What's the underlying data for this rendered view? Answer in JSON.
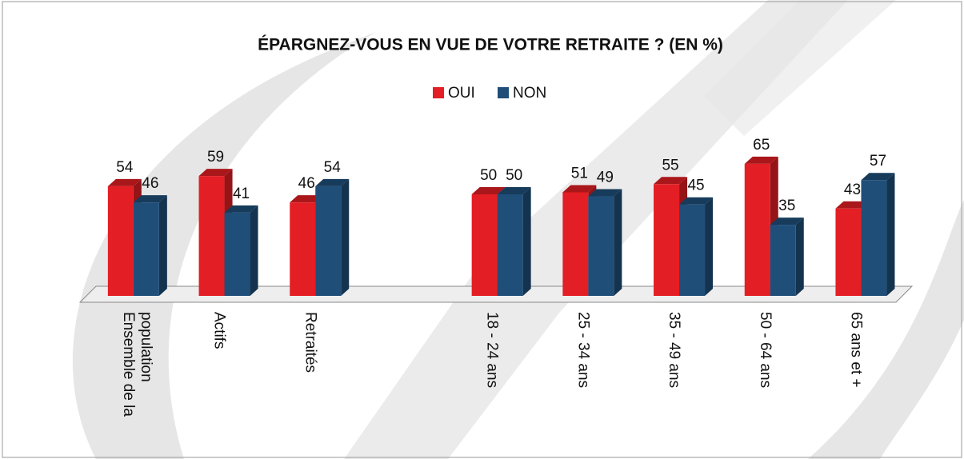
{
  "chart_data": {
    "type": "bar3d",
    "title": "ÉPARGNEZ-VOUS EN VUE DE VOTRE RETRAITE ? (EN %)",
    "categories": [
      "Ensemble de la population",
      "Actifs",
      "Retraités",
      null,
      "18 - 24 ans",
      "25 - 34 ans",
      "35 - 49 ans",
      "50 - 64 ans",
      "65 ans et +"
    ],
    "series": [
      {
        "name": "OUI",
        "color": "#e31e24",
        "values": [
          54,
          59,
          46,
          null,
          50,
          51,
          55,
          65,
          43
        ]
      },
      {
        "name": "NON",
        "color": "#1f4e79",
        "values": [
          46,
          41,
          54,
          null,
          50,
          49,
          45,
          35,
          57
        ]
      }
    ],
    "legend": "top"
  }
}
